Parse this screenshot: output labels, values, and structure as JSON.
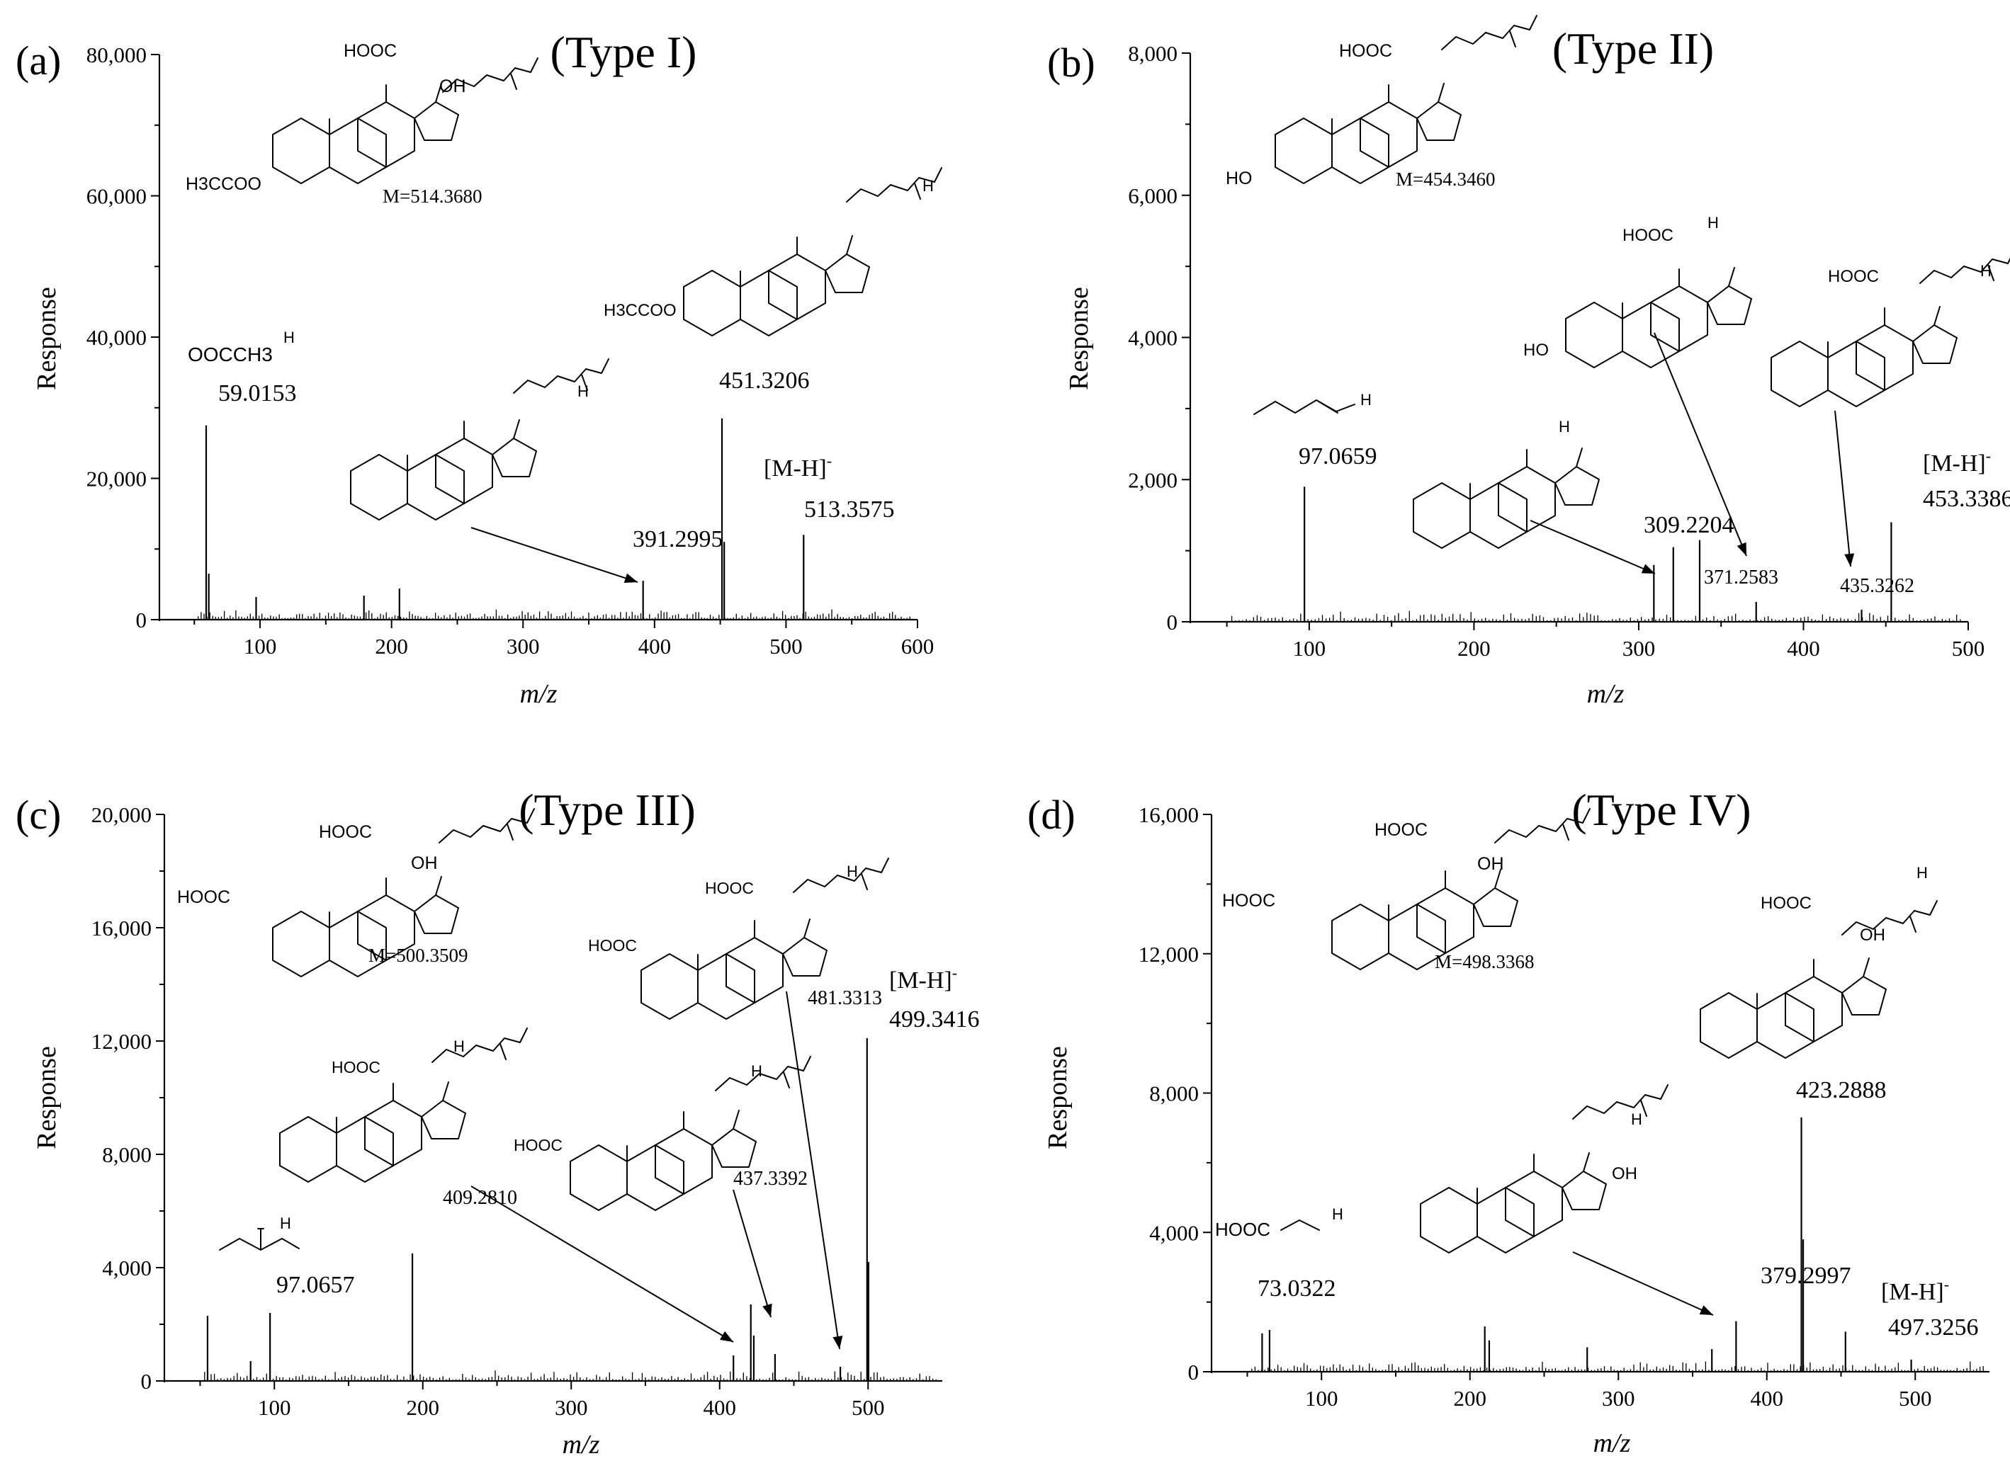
{
  "figure": "mass-spectra",
  "chart_data": [
    {
      "type": "bar",
      "panel_label": "(a)",
      "title": "(Type I)",
      "xlabel": "m/z",
      "ylabel": "Response",
      "xlim": [
        45,
        600
      ],
      "ylim": [
        0,
        80000
      ],
      "xticks": [
        100,
        200,
        300,
        400,
        500,
        600
      ],
      "xtick_labels": [
        "100",
        "200",
        "300",
        "400",
        "500",
        "600"
      ],
      "yticks": [
        0,
        20000,
        40000,
        60000,
        80000
      ],
      "ytick_labels": [
        "0",
        "20,000",
        "40,000",
        "60,000",
        "80,000"
      ],
      "peaks": [
        {
          "x": 59.0,
          "y": 27500
        },
        {
          "x": 61.0,
          "y": 6500
        },
        {
          "x": 97.0,
          "y": 3200
        },
        {
          "x": 179.0,
          "y": 3400
        },
        {
          "x": 206.0,
          "y": 4400
        },
        {
          "x": 391.3,
          "y": 5500
        },
        {
          "x": 451.3,
          "y": 28500
        },
        {
          "x": 453.0,
          "y": 11000
        },
        {
          "x": 513.4,
          "y": 12000
        }
      ],
      "annotations": [
        {
          "label": "59.0153",
          "x": 59.0153
        },
        {
          "label": "391.2995",
          "x": 391.2995
        },
        {
          "label": "451.3206",
          "x": 451.3206
        },
        {
          "label": "[M-H]",
          "superscript": "-",
          "x": 513.3575
        },
        {
          "label": "513.3575",
          "x": 513.3575
        }
      ],
      "structure_text": [
        "HOOC",
        "OH",
        "H3CCOO",
        "M=514.3680",
        "OOCCH3",
        "H"
      ]
    },
    {
      "type": "bar",
      "panel_label": "(b)",
      "title": "(Type II)",
      "xlabel": "m/z",
      "ylabel": "Response",
      "xlim": [
        45,
        500
      ],
      "ylim": [
        0,
        8000
      ],
      "xticks": [
        100,
        200,
        300,
        400,
        500
      ],
      "xtick_labels": [
        "100",
        "200",
        "300",
        "400",
        "500"
      ],
      "yticks": [
        0,
        2000,
        4000,
        6000,
        8000
      ],
      "ytick_labels": [
        "0",
        "2,000",
        "4,000",
        "6,000",
        "8,000"
      ],
      "peaks": [
        {
          "x": 97.1,
          "y": 1900
        },
        {
          "x": 309.2,
          "y": 800
        },
        {
          "x": 321.0,
          "y": 1050
        },
        {
          "x": 337.0,
          "y": 1150
        },
        {
          "x": 371.3,
          "y": 280
        },
        {
          "x": 435.3,
          "y": 170
        },
        {
          "x": 453.3,
          "y": 1400
        }
      ],
      "annotations": [
        {
          "label": "97.0659",
          "x": 97.0659
        },
        {
          "label": "309.2204",
          "x": 309.2204
        },
        {
          "label": "371.2583",
          "x": 371.2583
        },
        {
          "label": "435.3262",
          "x": 435.3262
        },
        {
          "label": "[M-H]",
          "superscript": "-",
          "x": 453.3386
        },
        {
          "label": "453.3386",
          "x": 453.3386
        }
      ],
      "structure_text": [
        "HOOC",
        "HO",
        "M=454.3460",
        "H"
      ]
    },
    {
      "type": "bar",
      "panel_label": "(c)",
      "title": "(Type III)",
      "xlabel": "m/z",
      "ylabel": "Response",
      "xlim": [
        45,
        550
      ],
      "ylim": [
        0,
        20000
      ],
      "xticks": [
        100,
        200,
        300,
        400,
        500
      ],
      "xtick_labels": [
        "100",
        "200",
        "300",
        "400",
        "500"
      ],
      "yticks": [
        0,
        4000,
        8000,
        12000,
        16000,
        20000
      ],
      "ytick_labels": [
        "0",
        "4,000",
        "8,000",
        "12,000",
        "16,000",
        "20,000"
      ],
      "peaks": [
        {
          "x": 55.0,
          "y": 2300
        },
        {
          "x": 84.0,
          "y": 700
        },
        {
          "x": 97.1,
          "y": 2400
        },
        {
          "x": 193.0,
          "y": 4500
        },
        {
          "x": 409.3,
          "y": 900
        },
        {
          "x": 421.0,
          "y": 2700
        },
        {
          "x": 423.0,
          "y": 1600
        },
        {
          "x": 437.3,
          "y": 950
        },
        {
          "x": 481.3,
          "y": 500
        },
        {
          "x": 499.3,
          "y": 12100
        },
        {
          "x": 500.3,
          "y": 4200
        }
      ],
      "annotations": [
        {
          "label": "97.0657",
          "x": 97.0657
        },
        {
          "label": "409.2810",
          "x": 409.281
        },
        {
          "label": "437.3392",
          "x": 437.3392
        },
        {
          "label": "481.3313",
          "x": 481.3313
        },
        {
          "label": "[M-H]",
          "superscript": "-",
          "x": 499.3416
        },
        {
          "label": "499.3416",
          "x": 499.3416
        }
      ],
      "structure_text": [
        "HOOC",
        "OH",
        "M=500.3509",
        "H"
      ]
    },
    {
      "type": "bar",
      "panel_label": "(d)",
      "title": "(Type IV)",
      "xlabel": "m/z",
      "ylabel": "Response",
      "xlim": [
        45,
        550
      ],
      "ylim": [
        0,
        16000
      ],
      "xticks": [
        100,
        200,
        300,
        400,
        500
      ],
      "xtick_labels": [
        "100",
        "200",
        "300",
        "400",
        "500"
      ],
      "yticks": [
        0,
        4000,
        8000,
        12000,
        16000
      ],
      "ytick_labels": [
        "0",
        "4,000",
        "8,000",
        "12,000",
        "16,000"
      ],
      "peaks": [
        {
          "x": 60.0,
          "y": 1100
        },
        {
          "x": 65.0,
          "y": 1200
        },
        {
          "x": 210.0,
          "y": 1300
        },
        {
          "x": 213.0,
          "y": 900
        },
        {
          "x": 279.0,
          "y": 700
        },
        {
          "x": 363.0,
          "y": 650
        },
        {
          "x": 379.3,
          "y": 1450
        },
        {
          "x": 423.3,
          "y": 7300
        },
        {
          "x": 424.5,
          "y": 3800
        },
        {
          "x": 453.0,
          "y": 1150
        },
        {
          "x": 497.3,
          "y": 350
        }
      ],
      "annotations": [
        {
          "label": "73.0322",
          "x": 73.0322
        },
        {
          "label": "379.2997",
          "x": 379.2997
        },
        {
          "label": "423.2888",
          "x": 423.2888
        },
        {
          "label": "[M-H]",
          "superscript": "-",
          "x": 497.3256
        },
        {
          "label": "497.3256",
          "x": 497.3256
        }
      ],
      "structure_text": [
        "HOOC",
        "OH",
        "M=498.3368",
        "H"
      ]
    }
  ]
}
